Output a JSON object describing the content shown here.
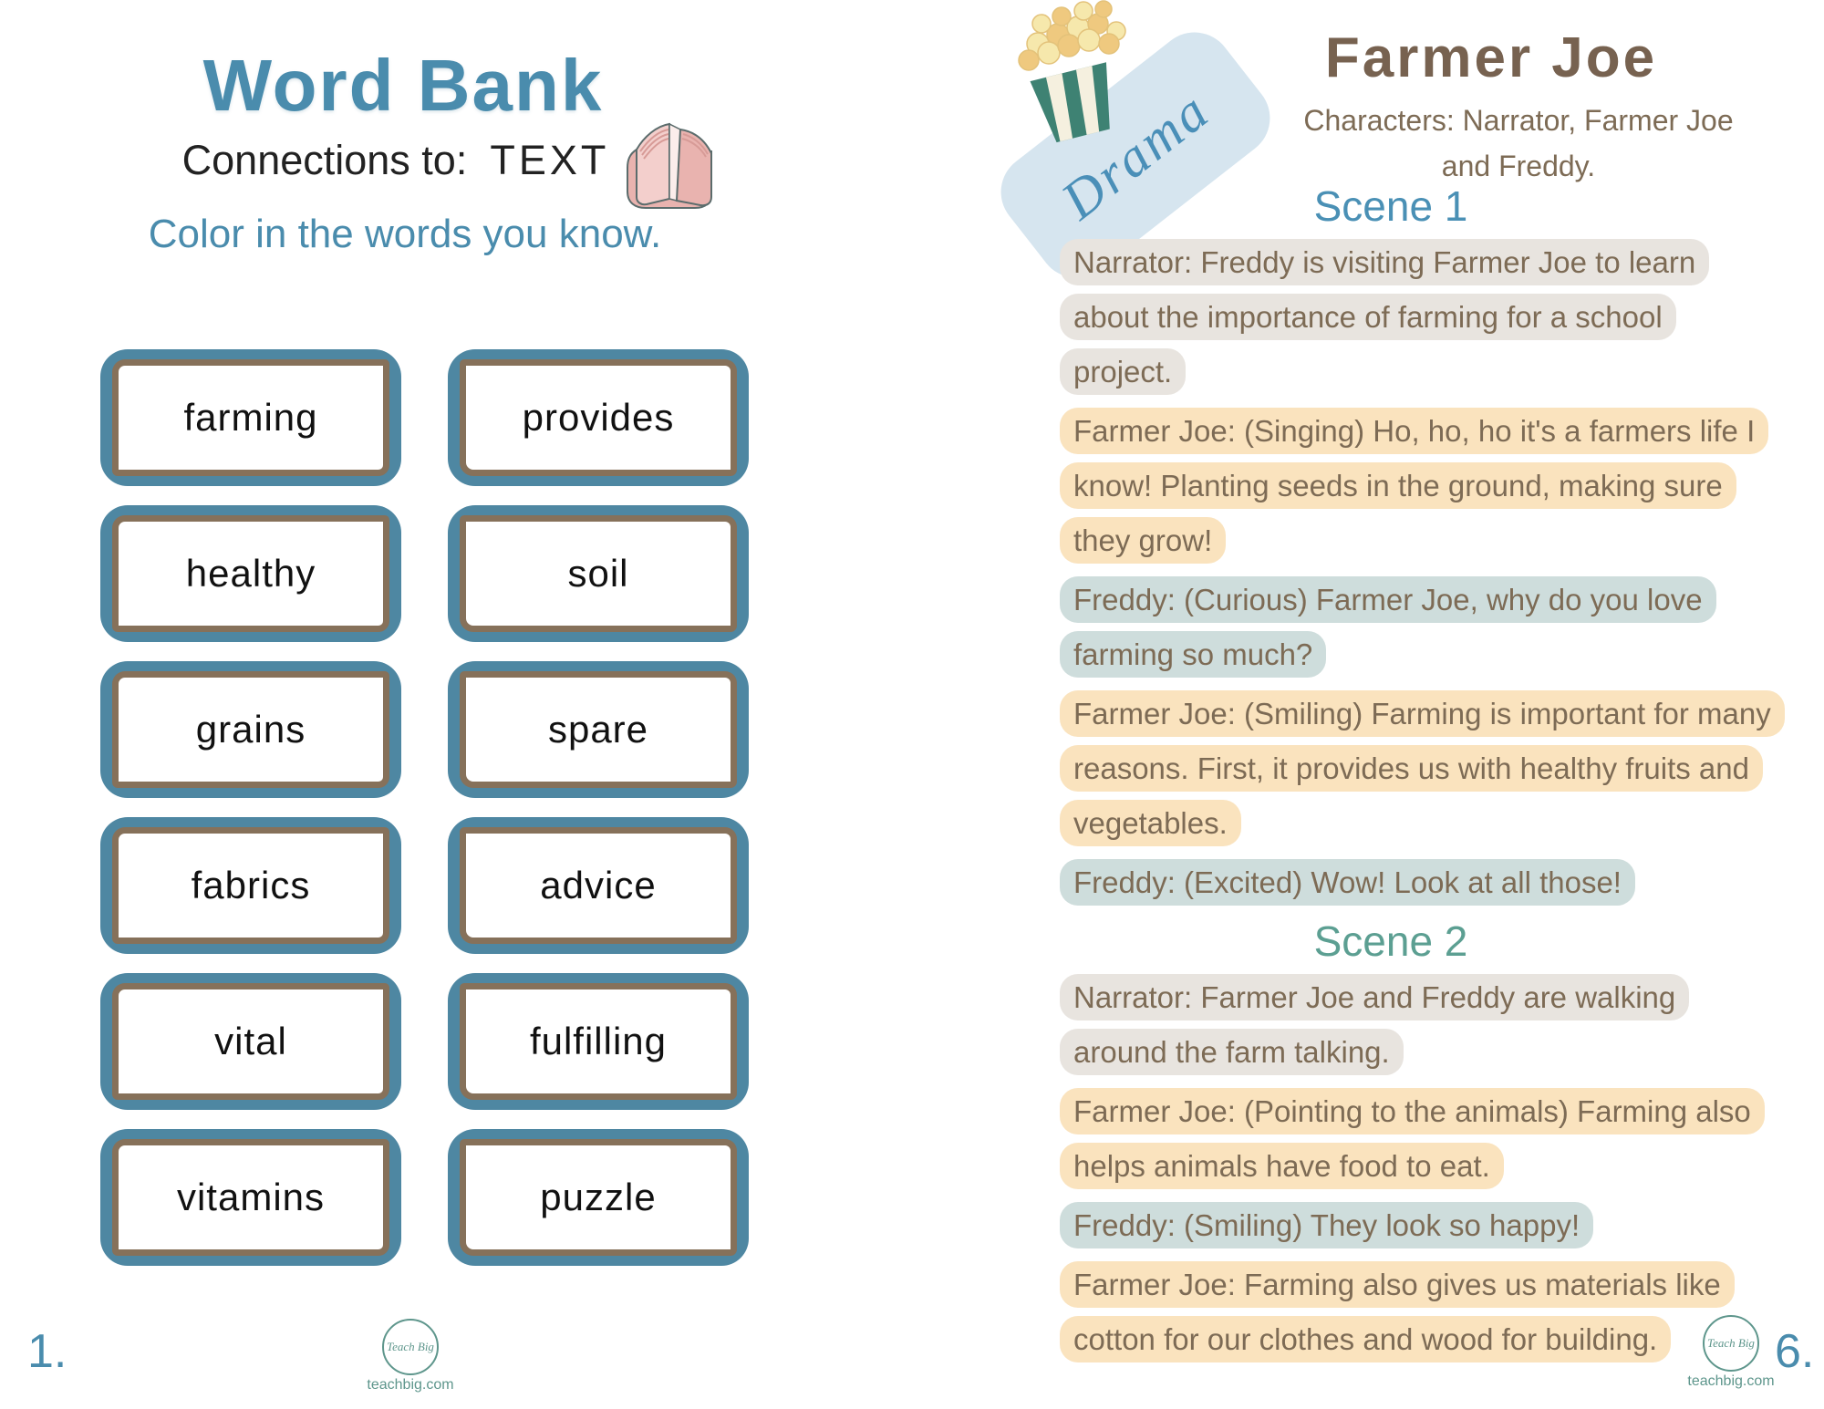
{
  "left_page": {
    "title": "Word Bank",
    "subtitle_prefix": "Connections to:  ",
    "subtitle_topic": "TEXT",
    "instruction": "Color in the words you know.",
    "words": [
      "farming",
      "provides",
      "healthy",
      "soil",
      "grains",
      "spare",
      "fabrics",
      "advice",
      "vital",
      "fulfilling",
      "vitamins",
      "puzzle"
    ],
    "page_number": "1.",
    "logo_text": "Teach Big",
    "footer_site": "teachbig.com"
  },
  "right_page": {
    "badge_label": "Drama",
    "title": "Farmer Joe",
    "characters_line1": "Characters: Narrator, Farmer Joe",
    "characters_line2": "and Freddy.",
    "script": [
      {
        "type": "scene",
        "label": "Scene 1",
        "color": "#4A90B5"
      },
      {
        "type": "line",
        "speaker": "narrator",
        "text": "Narrator:  Freddy is visiting Farmer Joe to learn about the importance of farming for a school project."
      },
      {
        "type": "line",
        "speaker": "farmer",
        "text": "Farmer Joe: (Singing) Ho, ho, ho it's a farmers life I know! Planting seeds in the ground, making sure they grow!"
      },
      {
        "type": "line",
        "speaker": "freddy",
        "text": "Freddy: (Curious) Farmer Joe, why do you love farming so much?"
      },
      {
        "type": "line",
        "speaker": "farmer",
        "text": "Farmer Joe: (Smiling) Farming is important for many reasons. First, it provides us with healthy fruits and vegetables."
      },
      {
        "type": "line",
        "speaker": "freddy",
        "text": "Freddy: (Excited) Wow! Look at all those!"
      },
      {
        "type": "scene",
        "label": "Scene 2",
        "color": "#5C9F92"
      },
      {
        "type": "line",
        "speaker": "narrator",
        "text": "Narrator:  Farmer Joe and Freddy are walking around the farm talking."
      },
      {
        "type": "line",
        "speaker": "farmer",
        "text": "Farmer Joe: (Pointing to the animals) Farming also helps animals have food to eat."
      },
      {
        "type": "line",
        "speaker": "freddy",
        "text": "Freddy: (Smiling) They look so happy!"
      },
      {
        "type": "line",
        "speaker": "farmer",
        "text": "Farmer Joe: Farming also gives us materials like cotton for our clothes and wood for building."
      }
    ],
    "page_number": "6.",
    "logo_text": "Teach Big",
    "footer_site": "teachbig.com"
  },
  "colors": {
    "heading_teal": "#4A8CAD",
    "scene1_blue": "#4A90B5",
    "scene2_teal": "#5C9F92",
    "brown_text": "#7D6B55",
    "title_brown": "#776250",
    "card_border_teal": "#4E87A2",
    "card_border_brown": "#86715A",
    "narrator_highlight": "#E8E4DF",
    "farmer_highlight": "#FAE3BE",
    "freddy_highlight": "#CEDDDC",
    "badge_blue": "#D6E5EF",
    "logo_teal": "#5E968C",
    "book_pink": "#E9B3AF",
    "popcorn_box_teal": "#3E8273",
    "popcorn_yellow": "#F6E8AC"
  }
}
